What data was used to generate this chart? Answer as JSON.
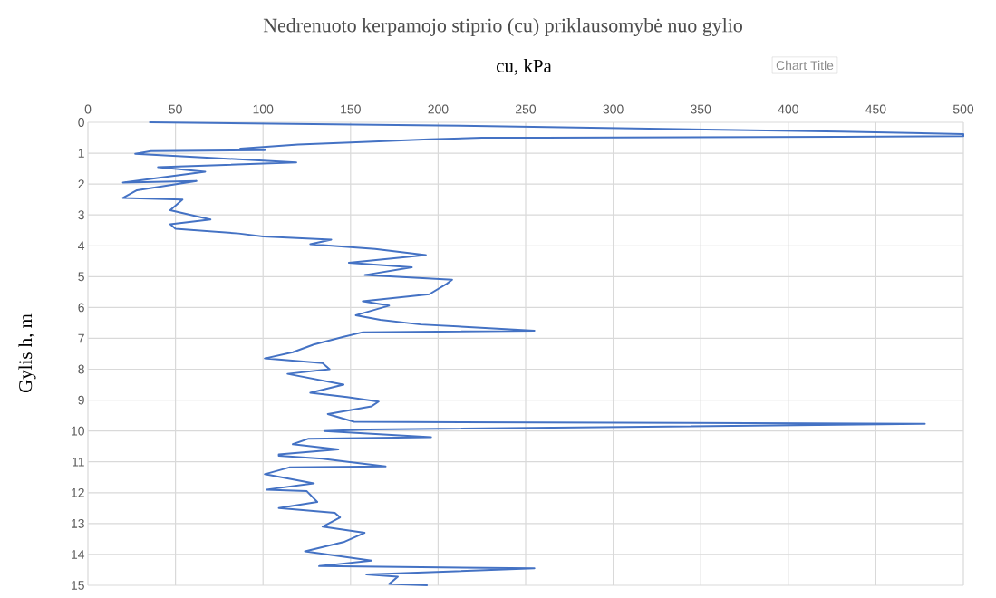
{
  "chart_data": {
    "type": "line",
    "title": "Nedrenuoto kerpamojo stiprio (cu) priklausomybė nuo gylio",
    "xlabel": "cu, kPa",
    "ylabel": "Gylis h, m",
    "annotations": [
      "Chart Title"
    ],
    "series": [
      {
        "color": "#4472c4",
        "x": [
          35,
          200,
          430,
          500,
          500,
          430,
          260,
          225,
          195,
          150,
          120,
          100,
          87,
          101,
          36,
          27,
          119,
          40,
          67,
          20,
          62,
          28,
          20,
          54,
          47,
          70,
          47,
          50,
          86,
          100,
          139,
          127,
          164,
          193,
          149,
          185,
          158,
          208,
          205,
          195,
          157,
          172,
          153,
          167,
          190,
          255,
          157,
          146,
          129,
          117,
          101,
          134,
          138,
          114,
          146,
          127,
          148,
          166,
          162,
          137,
          152,
          478,
          160,
          135,
          196,
          126,
          117,
          143,
          109,
          109,
          134,
          170,
          115,
          101,
          129,
          102,
          125,
          131,
          109,
          141,
          144,
          134,
          158,
          146,
          124,
          162,
          132,
          255,
          159,
          177,
          172,
          194
        ],
        "values": [
          0,
          0.1,
          0.3,
          0.38,
          0.45,
          0.47,
          0.5,
          0.5,
          0.55,
          0.65,
          0.72,
          0.8,
          0.85,
          0.9,
          0.93,
          1.02,
          1.3,
          1.45,
          1.6,
          1.95,
          1.9,
          2.2,
          2.45,
          2.5,
          2.85,
          3.15,
          3.3,
          3.45,
          3.6,
          3.7,
          3.8,
          3.95,
          4.1,
          4.3,
          4.55,
          4.7,
          4.95,
          5.1,
          5.23,
          5.57,
          5.8,
          5.94,
          6.25,
          6.4,
          6.55,
          6.75,
          6.8,
          6.95,
          7.2,
          7.45,
          7.65,
          7.8,
          8.0,
          8.15,
          8.5,
          8.76,
          8.9,
          9.05,
          9.2,
          9.45,
          9.7,
          9.77,
          9.95,
          10.0,
          10.2,
          10.25,
          10.43,
          10.6,
          10.76,
          10.8,
          10.9,
          11.15,
          11.18,
          11.4,
          11.7,
          11.9,
          11.95,
          12.3,
          12.5,
          12.65,
          12.8,
          13.1,
          13.3,
          13.6,
          13.9,
          14.2,
          14.38,
          14.45,
          14.65,
          14.72,
          14.96,
          15.0
        ]
      }
    ],
    "xlim": [
      0,
      500
    ],
    "xticks": [
      0,
      50,
      100,
      150,
      200,
      250,
      300,
      350,
      400,
      450,
      500
    ],
    "ylim": [
      15,
      0
    ],
    "yticks": [
      0,
      1,
      2,
      3,
      4,
      5,
      6,
      7,
      8,
      9,
      10,
      11,
      12,
      13,
      14,
      15
    ],
    "grid": true,
    "marker": "none",
    "line_style": "solid"
  }
}
